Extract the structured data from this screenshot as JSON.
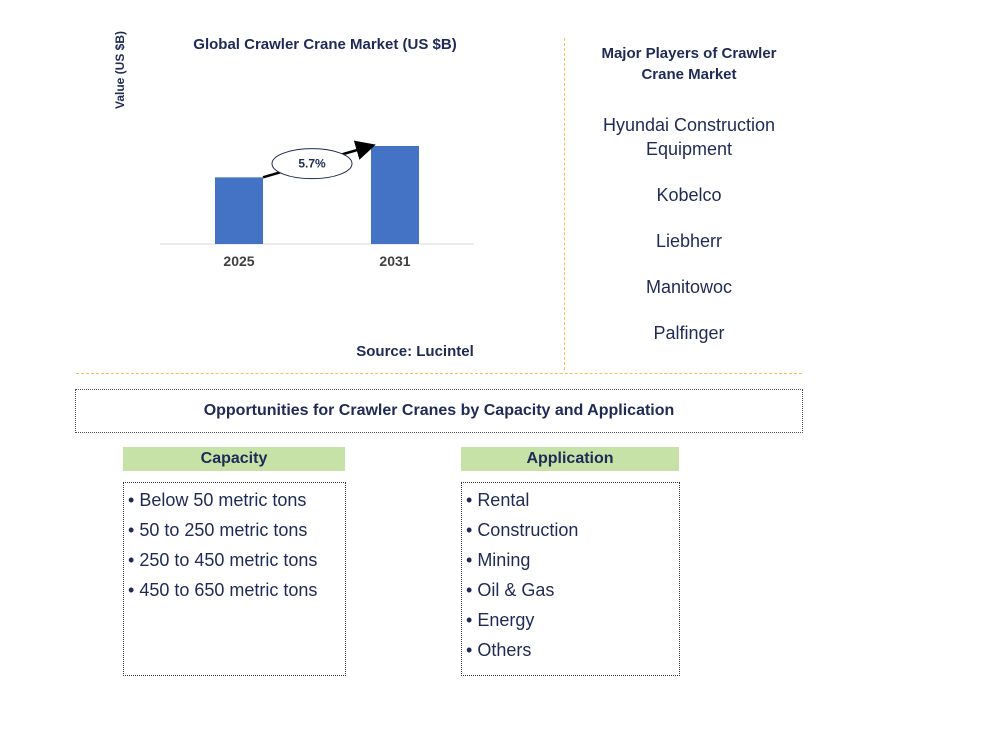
{
  "chart_data": {
    "type": "bar",
    "title": "Global Crawler Crane Market (US $B)",
    "ylabel": "Value (US $B)",
    "categories": [
      "2025",
      "2031"
    ],
    "values": [
      0.68,
      1.0
    ],
    "annotation": "5.7%",
    "source": "Source: Lucintel",
    "bar_color": "#4472c4"
  },
  "players": {
    "title_line1": "Major Players of Crawler",
    "title_line2": "Crane Market",
    "items": [
      "Hyundai Construction Equipment",
      "Kobelco",
      "Liebherr",
      "Manitowoc",
      "Palfinger"
    ]
  },
  "opportunities": {
    "title": "Opportunities for Crawler Cranes by Capacity and Application",
    "capacity": {
      "heading": "Capacity",
      "items": [
        "Below 50 metric tons",
        "50 to 250 metric tons",
        "250 to 450 metric tons",
        "450 to 650 metric tons"
      ]
    },
    "application": {
      "heading": "Application",
      "items": [
        "Rental",
        "Construction",
        "Mining",
        "Oil & Gas",
        "Energy",
        "Others"
      ]
    }
  },
  "colors": {
    "text": "#1f2a56",
    "header_bg": "#c6e2a6",
    "divider": "#e6c85a"
  }
}
